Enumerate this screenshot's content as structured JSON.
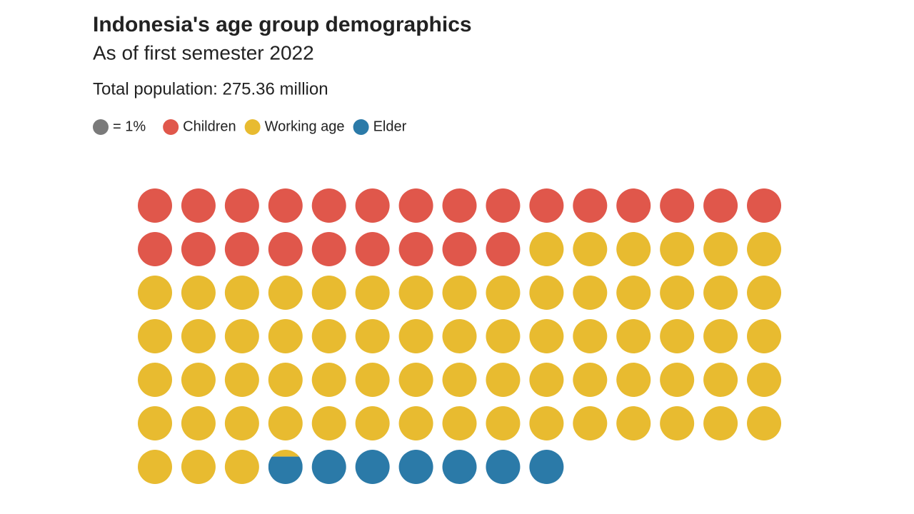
{
  "chart_data": {
    "type": "waffle",
    "title": "Indonesia's age group demographics",
    "subtitle": "As of first semester 2022",
    "note": "Total population: 275.36 million",
    "unit_label": "= 1%",
    "unit_color": "#7a7a7a",
    "columns": 15,
    "series": [
      {
        "name": "Children",
        "color": "#e0574b",
        "values": [
          24
        ]
      },
      {
        "name": "Working age",
        "color": "#e8bb30",
        "values": [
          69.2
        ]
      },
      {
        "name": "Elder",
        "color": "#2b7aa8",
        "values": [
          6.8
        ]
      }
    ]
  }
}
